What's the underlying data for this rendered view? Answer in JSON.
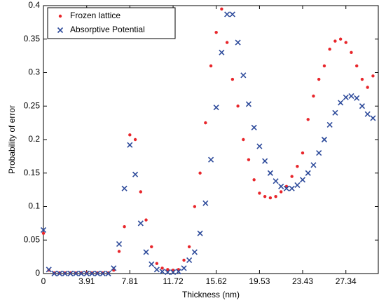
{
  "chart_data": {
    "type": "scatter",
    "xlabel": "Thickness (nm)",
    "ylabel": "Probability of error",
    "x": [
      0,
      0.49,
      0.98,
      1.46,
      1.95,
      2.44,
      2.93,
      3.42,
      3.91,
      4.39,
      4.88,
      5.37,
      5.86,
      6.35,
      6.84,
      7.32,
      7.81,
      8.3,
      8.79,
      9.28,
      9.77,
      10.25,
      10.74,
      11.23,
      11.72,
      12.21,
      12.7,
      13.18,
      13.67,
      14.16,
      14.65,
      15.14,
      15.62,
      16.11,
      16.6,
      17.09,
      17.58,
      18.07,
      18.55,
      19.04,
      19.53,
      20.02,
      20.51,
      21,
      21.48,
      21.97,
      22.46,
      22.95,
      23.43,
      23.92,
      24.41,
      24.9,
      25.39,
      25.88,
      26.37,
      26.86,
      27.34,
      27.83,
      28.32,
      28.81,
      29.3,
      29.79
    ],
    "series": [
      {
        "name": "Frozen lattice",
        "color": "#e8262b",
        "marker": "dot",
        "values": [
          0.06,
          0.005,
          0.001,
          0.001,
          0.001,
          0.001,
          0.001,
          0.001,
          0.001,
          0.001,
          0.001,
          0.001,
          0.001,
          0.005,
          0.033,
          0.07,
          0.207,
          0.2,
          0.122,
          0.08,
          0.04,
          0.015,
          0.008,
          0.006,
          0.005,
          0.006,
          0.02,
          0.04,
          0.1,
          0.15,
          0.225,
          0.31,
          0.36,
          0.395,
          0.345,
          0.29,
          0.25,
          0.2,
          0.17,
          0.14,
          0.12,
          0.115,
          0.113,
          0.115,
          0.122,
          0.13,
          0.145,
          0.16,
          0.18,
          0.23,
          0.265,
          0.29,
          0.31,
          0.335,
          0.347,
          0.35,
          0.345,
          0.33,
          0.31,
          0.29,
          0.278,
          0.295
        ]
      },
      {
        "name": "Absorptive Potential",
        "color": "#2e4b9b",
        "marker": "x",
        "values": [
          0.065,
          0.006,
          0,
          0,
          0,
          0,
          0,
          0,
          0,
          0,
          0,
          0,
          0,
          0.008,
          0.044,
          0.127,
          0.192,
          0.148,
          0.075,
          0.032,
          0.014,
          0.006,
          0.003,
          0.002,
          0.002,
          0.003,
          0.008,
          0.02,
          0.032,
          0.06,
          0.105,
          0.17,
          0.248,
          0.33,
          0.387,
          0.387,
          0.345,
          0.296,
          0.253,
          0.218,
          0.19,
          0.168,
          0.15,
          0.138,
          0.13,
          0.127,
          0.127,
          0.132,
          0.14,
          0.15,
          0.162,
          0.18,
          0.2,
          0.222,
          0.24,
          0.255,
          0.263,
          0.265,
          0.262,
          0.25,
          0.238,
          0.232
        ]
      }
    ],
    "xlim": [
      0,
      30.27
    ],
    "ylim": [
      0,
      0.4
    ],
    "xticks": [
      0,
      3.91,
      7.81,
      11.72,
      15.62,
      19.53,
      23.43,
      27.34
    ],
    "yticks": [
      0,
      0.05,
      0.1,
      0.15,
      0.2,
      0.25,
      0.3,
      0.35,
      0.4
    ],
    "grid": false,
    "legend": "upper-left"
  }
}
